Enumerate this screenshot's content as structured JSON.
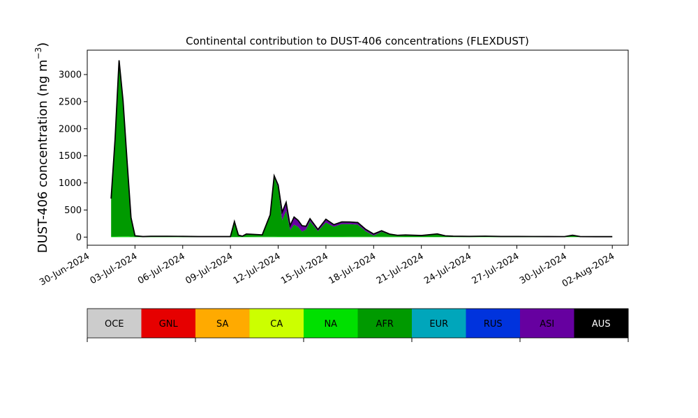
{
  "chart_data": {
    "type": "area",
    "title": "Continental contribution to DUST-406 concentrations (FLEXDUST)",
    "ylabel": "DUST-406 concentration (ng m",
    "ylabel_sup": "−3",
    "ylabel_close": ")",
    "xlabel": "",
    "ylim": [
      -150,
      3450
    ],
    "yticks": [
      0,
      500,
      1000,
      1500,
      2000,
      2500,
      3000
    ],
    "xlim_days": [
      "2024-06-30T00:00",
      "2024-08-03T00:00"
    ],
    "xticks": [
      "30-Jun-2024",
      "03-Jul-2024",
      "06-Jul-2024",
      "09-Jul-2024",
      "12-Jul-2024",
      "15-Jul-2024",
      "18-Jul-2024",
      "21-Jul-2024",
      "24-Jul-2024",
      "27-Jul-2024",
      "30-Jul-2024",
      "02-Aug-2024"
    ],
    "grid": false,
    "stack_order": [
      "SA",
      "CA",
      "NA",
      "AFR",
      "EUR",
      "RUS",
      "ASI",
      "AUS"
    ],
    "series": [
      {
        "name": "AFR",
        "color": "#009a00",
        "x": [
          "2024-07-01T12:00",
          "2024-07-01T18:00",
          "2024-07-02T00:00",
          "2024-07-02T06:00",
          "2024-07-02T12:00",
          "2024-07-02T18:00",
          "2024-07-03T00:00",
          "2024-07-03T12:00",
          "2024-07-04T00:00",
          "2024-07-05T00:00",
          "2024-07-06T00:00",
          "2024-07-07T00:00",
          "2024-07-08T00:00",
          "2024-07-09T00:00",
          "2024-07-09T06:00",
          "2024-07-09T12:00",
          "2024-07-09T18:00",
          "2024-07-10T00:00",
          "2024-07-10T12:00",
          "2024-07-11T00:00",
          "2024-07-11T12:00",
          "2024-07-11T18:00",
          "2024-07-12T00:00",
          "2024-07-12T06:00",
          "2024-07-12T12:00",
          "2024-07-12T18:00",
          "2024-07-13T00:00",
          "2024-07-13T06:00",
          "2024-07-13T12:00",
          "2024-07-13T18:00",
          "2024-07-14T00:00",
          "2024-07-14T12:00",
          "2024-07-15T00:00",
          "2024-07-15T12:00",
          "2024-07-16T00:00",
          "2024-07-16T12:00",
          "2024-07-17T00:00",
          "2024-07-17T12:00",
          "2024-07-18T00:00",
          "2024-07-18T12:00",
          "2024-07-19T00:00",
          "2024-07-19T12:00",
          "2024-07-20T00:00",
          "2024-07-21T00:00",
          "2024-07-22T00:00",
          "2024-07-22T12:00",
          "2024-07-23T00:00",
          "2024-07-24T00:00",
          "2024-07-25T00:00",
          "2024-07-26T00:00",
          "2024-07-27T00:00",
          "2024-07-28T00:00",
          "2024-07-29T00:00",
          "2024-07-30T00:00",
          "2024-07-30T12:00",
          "2024-07-31T00:00",
          "2024-08-01T00:00",
          "2024-08-02T00:00"
        ],
        "values": [
          700,
          1800,
          3250,
          2500,
          1400,
          350,
          20,
          5,
          10,
          10,
          8,
          5,
          5,
          5,
          280,
          30,
          10,
          50,
          40,
          30,
          400,
          1100,
          900,
          300,
          480,
          120,
          220,
          180,
          90,
          130,
          280,
          100,
          260,
          180,
          230,
          230,
          220,
          100,
          20,
          90,
          40,
          20,
          30,
          20,
          50,
          15,
          8,
          5,
          10,
          5,
          5,
          5,
          5,
          5,
          30,
          5,
          5,
          5
        ]
      },
      {
        "name": "ASI",
        "color": "#6600a0",
        "x": [
          "2024-07-01T12:00",
          "2024-07-09T00:00",
          "2024-07-11T12:00",
          "2024-07-11T18:00",
          "2024-07-12T00:00",
          "2024-07-12T06:00",
          "2024-07-12T12:00",
          "2024-07-12T18:00",
          "2024-07-13T00:00",
          "2024-07-13T06:00",
          "2024-07-13T12:00",
          "2024-07-13T18:00",
          "2024-07-14T00:00",
          "2024-07-14T12:00",
          "2024-07-15T00:00",
          "2024-07-15T12:00",
          "2024-07-16T00:00",
          "2024-07-17T00:00",
          "2024-07-18T00:00",
          "2024-07-19T00:00",
          "2024-07-20T00:00",
          "2024-08-02T00:00"
        ],
        "values": [
          0,
          0,
          5,
          20,
          50,
          150,
          150,
          80,
          140,
          120,
          110,
          60,
          50,
          30,
          60,
          40,
          40,
          40,
          30,
          10,
          5,
          0
        ]
      },
      {
        "name": "NA",
        "color": "#00e000",
        "x": [
          "2024-07-01T12:00",
          "2024-07-02T12:00",
          "2024-07-03T00:00",
          "2024-07-10T00:00",
          "2024-07-12T00:00",
          "2024-07-16T00:00",
          "2024-07-20T00:00",
          "2024-08-02T00:00"
        ],
        "values": [
          10,
          15,
          5,
          5,
          10,
          10,
          5,
          3
        ]
      },
      {
        "name": "AUS",
        "color": "#000000",
        "x": [
          "2024-07-01T12:00",
          "2024-08-02T00:00"
        ],
        "values": [
          0,
          0
        ]
      }
    ]
  },
  "legend": {
    "entries": [
      {
        "label": "OCE",
        "color": "#cccccc",
        "text_color": "#000000"
      },
      {
        "label": "GNL",
        "color": "#e60000",
        "text_color": "#000000"
      },
      {
        "label": "SA",
        "color": "#ffaa00",
        "text_color": "#000000"
      },
      {
        "label": "CA",
        "color": "#ccff00",
        "text_color": "#000000"
      },
      {
        "label": "NA",
        "color": "#00e000",
        "text_color": "#000000"
      },
      {
        "label": "AFR",
        "color": "#009a00",
        "text_color": "#000000"
      },
      {
        "label": "EUR",
        "color": "#00a6bb",
        "text_color": "#000000"
      },
      {
        "label": "RUS",
        "color": "#0033dd",
        "text_color": "#000000"
      },
      {
        "label": "ASI",
        "color": "#6600a0",
        "text_color": "#000000"
      },
      {
        "label": "AUS",
        "color": "#000000",
        "text_color": "#ffffff"
      }
    ]
  }
}
